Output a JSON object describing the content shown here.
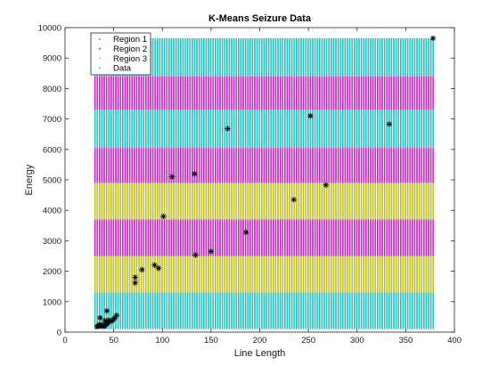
{
  "chart_data": {
    "type": "scatter",
    "title": "K-Means Seizure Data",
    "xlabel": "Line Length",
    "ylabel": "Energy",
    "xlim": [
      0,
      400
    ],
    "ylim": [
      0,
      10000
    ],
    "xticks": [
      0,
      50,
      100,
      150,
      200,
      250,
      300,
      350,
      400
    ],
    "yticks": [
      0,
      1000,
      2000,
      3000,
      4000,
      5000,
      6000,
      7000,
      8000,
      9000,
      10000
    ],
    "grid": false,
    "legend_location": "top-left",
    "regions_x_range": [
      30,
      380
    ],
    "regions": [
      {
        "name": "Region 1",
        "color": "#1fbfbf",
        "y_ranges": [
          [
            100,
            1300
          ],
          [
            6050,
            7300
          ],
          [
            8400,
            9650
          ]
        ]
      },
      {
        "name": "Region 2",
        "color": "#bf1fbf",
        "y_ranges": [
          [
            2500,
            3700
          ],
          [
            4900,
            6050
          ],
          [
            7300,
            8400
          ]
        ]
      },
      {
        "name": "Region 3",
        "color": "#bfbf1f",
        "y_ranges": [
          [
            1300,
            2500
          ],
          [
            3700,
            4900
          ]
        ]
      }
    ],
    "data_series": {
      "name": "Data",
      "marker": "asterisk",
      "color": "#000000",
      "points": [
        [
          33,
          180
        ],
        [
          34,
          200
        ],
        [
          35,
          250
        ],
        [
          36,
          230
        ],
        [
          37,
          210
        ],
        [
          38,
          200
        ],
        [
          39,
          240
        ],
        [
          40,
          190
        ],
        [
          41,
          220
        ],
        [
          42,
          260
        ],
        [
          43,
          280
        ],
        [
          44,
          300
        ],
        [
          36,
          470
        ],
        [
          41,
          380
        ],
        [
          43,
          700
        ],
        [
          45,
          400
        ],
        [
          47,
          350
        ],
        [
          49,
          400
        ],
        [
          51,
          460
        ],
        [
          53,
          550
        ],
        [
          72,
          1800
        ],
        [
          72,
          1620
        ],
        [
          79,
          2050
        ],
        [
          92,
          2200
        ],
        [
          96,
          2100
        ],
        [
          101,
          3800
        ],
        [
          110,
          5100
        ],
        [
          133,
          5200
        ],
        [
          134,
          2530
        ],
        [
          150,
          2650
        ],
        [
          167,
          6680
        ],
        [
          186,
          3280
        ],
        [
          235,
          4350
        ],
        [
          252,
          7100
        ],
        [
          268,
          4830
        ],
        [
          333,
          6830
        ],
        [
          378,
          9650
        ]
      ]
    }
  }
}
